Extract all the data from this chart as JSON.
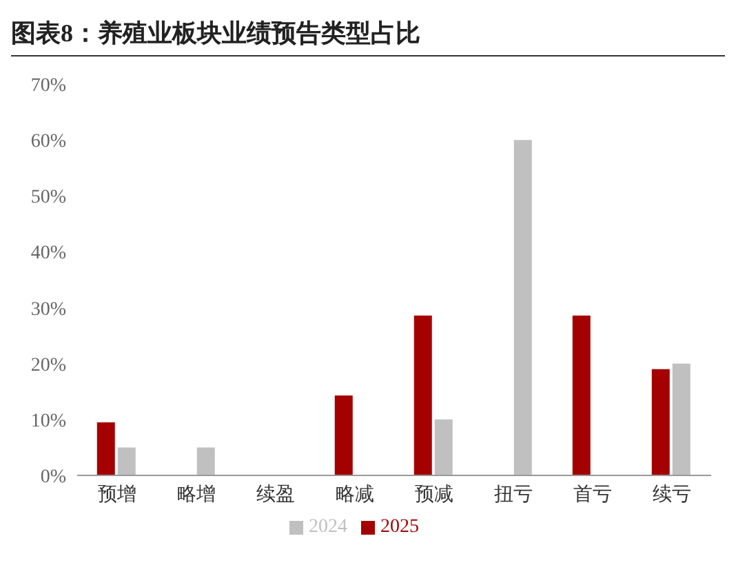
{
  "chart_data": {
    "type": "bar",
    "title": "图表8：养殖业板块业绩预告类型占比",
    "categories": [
      "预增",
      "略增",
      "续盈",
      "略减",
      "预减",
      "扭亏",
      "首亏",
      "续亏"
    ],
    "series": [
      {
        "name": "2025",
        "color": "#a50000",
        "values": [
          9.5,
          0,
          0,
          14.3,
          28.6,
          0,
          28.6,
          19.0
        ]
      },
      {
        "name": "2024",
        "color": "#c0c0c0",
        "values": [
          5,
          5,
          0,
          0,
          10,
          60,
          0,
          20
        ]
      }
    ],
    "ylim": [
      0,
      70
    ],
    "yticks": [
      {
        "value": 0,
        "label": "0%"
      },
      {
        "value": 10,
        "label": "10%"
      },
      {
        "value": 20,
        "label": "20%"
      },
      {
        "value": 30,
        "label": "30%"
      },
      {
        "value": 40,
        "label": "40%"
      },
      {
        "value": 50,
        "label": "50%"
      },
      {
        "value": 60,
        "label": "60%"
      },
      {
        "value": 70,
        "label": "70%"
      }
    ],
    "grid": false,
    "legend": "bottom"
  }
}
